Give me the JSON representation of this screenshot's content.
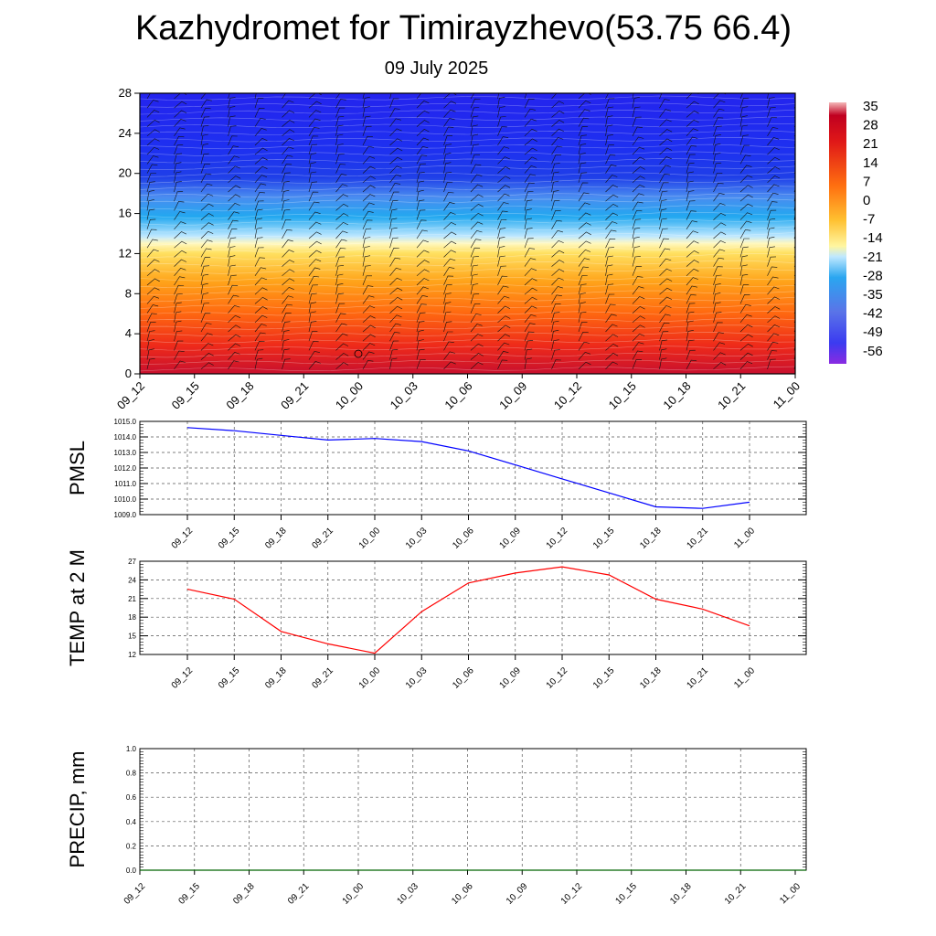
{
  "header": {
    "title": "Kazhydromet for Timirayzhevo(53.75 66.4)",
    "date": "09 July 2025"
  },
  "colorbar_labels": [
    "35",
    "28",
    "21",
    "14",
    "7",
    "0",
    "-7",
    "-14",
    "-21",
    "-28",
    "-35",
    "-42",
    "-49",
    "-56"
  ],
  "chart_data": [
    {
      "type": "heatmap",
      "title": "",
      "x_labels": [
        "09_12",
        "09_15",
        "09_18",
        "09_21",
        "10_00",
        "10_03",
        "10_06",
        "10_09",
        "10_12",
        "10_15",
        "10_18",
        "10_21",
        "11_00"
      ],
      "y_ticks": [
        0,
        4,
        8,
        12,
        16,
        20,
        24,
        28
      ],
      "ylim": [
        0,
        28
      ],
      "colorbar": {
        "min": -56,
        "max": 35,
        "step": 7
      },
      "description": "temperature contours with wind barbs; freezing level near 13",
      "marker": {
        "x": "10_00",
        "y": 2
      }
    },
    {
      "type": "line",
      "ylabel": "PMSL",
      "x_labels": [
        "09_12",
        "09_15",
        "09_18",
        "09_21",
        "10_00",
        "10_03",
        "10_06",
        "10_09",
        "10_12",
        "10_15",
        "10_18",
        "10_21",
        "11_00"
      ],
      "y_ticks": [
        "1009.0",
        "1010.0",
        "1011.0",
        "1012.0",
        "1013.0",
        "1014.0",
        "1015.0"
      ],
      "ylim": [
        1009,
        1015
      ],
      "series": [
        {
          "color": "#0000ff",
          "values": [
            1014.6,
            1014.4,
            1014.1,
            1013.8,
            1013.9,
            1013.7,
            1013.1,
            1012.2,
            1011.3,
            1010.4,
            1009.5,
            1009.4,
            1009.8
          ]
        }
      ]
    },
    {
      "type": "line",
      "ylabel": "TEMP at 2 M",
      "x_labels": [
        "09_12",
        "09_15",
        "09_18",
        "09_21",
        "10_00",
        "10_03",
        "10_06",
        "10_09",
        "10_12",
        "10_15",
        "10_18",
        "10_21",
        "11_00"
      ],
      "y_ticks": [
        "12",
        "15",
        "18",
        "21",
        "24",
        "27"
      ],
      "ylim": [
        12,
        27
      ],
      "series": [
        {
          "color": "#ff0000",
          "values": [
            22.5,
            20.9,
            15.7,
            13.7,
            12.2,
            18.9,
            23.5,
            25.1,
            26.1,
            24.8,
            20.9,
            19.3,
            16.6
          ]
        }
      ]
    },
    {
      "type": "line",
      "ylabel": "PRECIP, mm",
      "x_labels": [
        "09_12",
        "09_15",
        "09_18",
        "09_21",
        "10_00",
        "10_03",
        "10_06",
        "10_09",
        "10_12",
        "10_15",
        "10_18",
        "10_21",
        "11_00"
      ],
      "y_ticks": [
        "0.0",
        "0.2",
        "0.4",
        "0.6",
        "0.8",
        "1.0"
      ],
      "ylim": [
        0,
        1
      ],
      "series": [
        {
          "color": "#006400",
          "values": [
            0,
            0,
            0,
            0,
            0,
            0,
            0,
            0,
            0,
            0,
            0,
            0,
            0
          ]
        }
      ]
    }
  ]
}
